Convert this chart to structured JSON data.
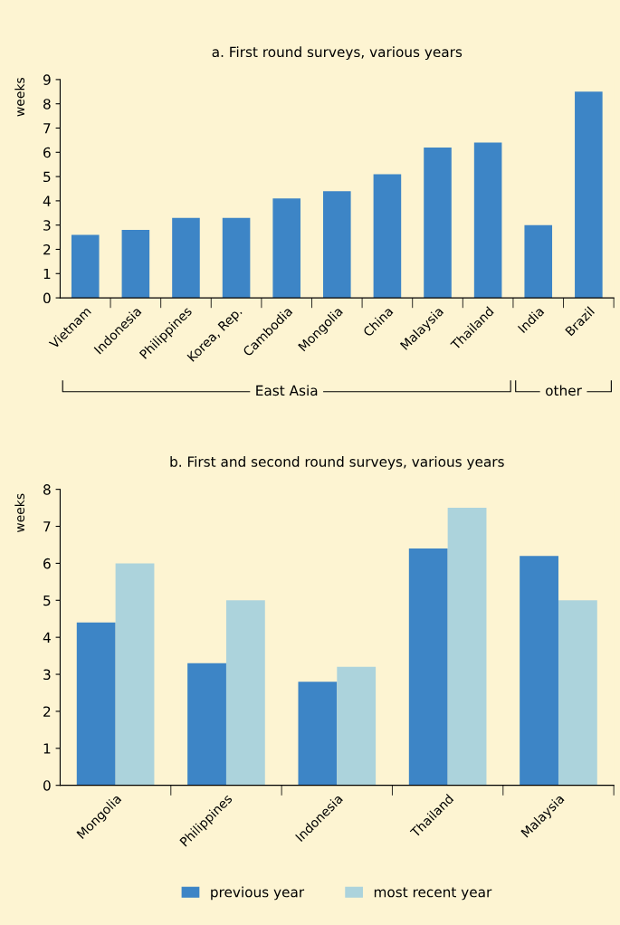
{
  "chart_data": [
    {
      "type": "bar",
      "title": "a. First round surveys, various years",
      "ylabel": "weeks",
      "categories": [
        "Vietnam",
        "Indonesia",
        "Philippines",
        "Korea, Rep.",
        "Cambodia",
        "Mongolia",
        "China",
        "Malaysia",
        "Thailand",
        "India",
        "Brazil"
      ],
      "values": [
        2.6,
        2.8,
        3.3,
        3.3,
        4.1,
        4.4,
        5.1,
        6.2,
        6.4,
        3.0,
        8.5
      ],
      "color": "#3d85c6",
      "ylim": [
        0,
        9
      ],
      "yticks": [
        0,
        1,
        2,
        3,
        4,
        5,
        6,
        7,
        8,
        9
      ],
      "grid": false,
      "annotations": [
        "East Asia",
        "other"
      ]
    },
    {
      "type": "bar",
      "title": "b. First and second round surveys, various years",
      "ylabel": "weeks",
      "categories": [
        "Mongolia",
        "Philippines",
        "Indonesia",
        "Thailand",
        "Malaysia"
      ],
      "series": [
        {
          "name": "previous year",
          "color": "#3d85c6",
          "values": [
            4.4,
            3.3,
            2.8,
            6.4,
            6.2
          ]
        },
        {
          "name": "most recent year",
          "color": "#acd3dc",
          "values": [
            6.0,
            5.0,
            3.2,
            7.5,
            5.0
          ]
        }
      ],
      "ylim": [
        0,
        8
      ],
      "yticks": [
        0,
        1,
        2,
        3,
        4,
        5,
        6,
        7,
        8
      ],
      "grid": false,
      "legend": "bottom"
    }
  ]
}
